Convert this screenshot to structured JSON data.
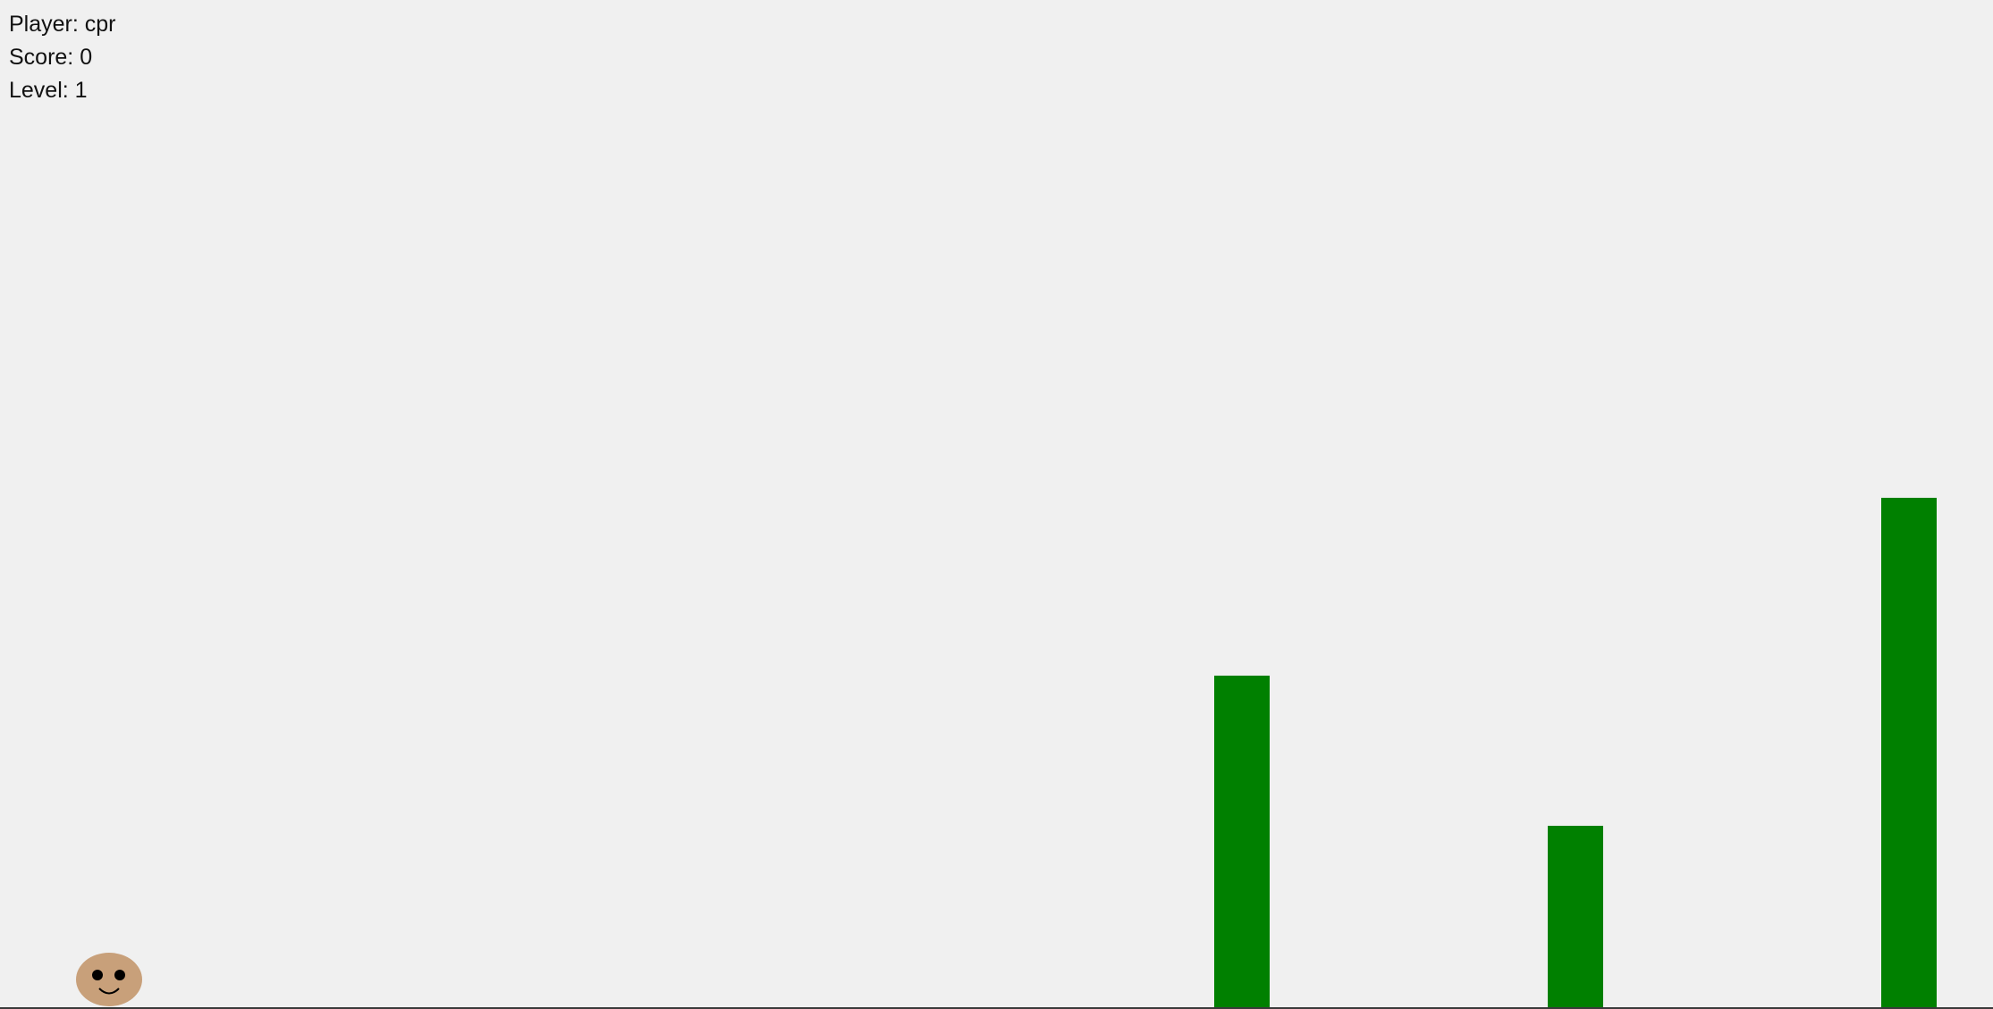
{
  "hud": {
    "player_label": "Player:",
    "player_name": "cpr",
    "score_label": "Score:",
    "score": 0,
    "level_label": "Level:",
    "level": 1
  },
  "colors": {
    "background": "#f0f0f0",
    "obstacle": "#008000",
    "player_face": "#c8a07a",
    "ground": "#3a3a3a"
  },
  "player": {
    "icon": "smiley-face-icon"
  },
  "obstacles_count": 3
}
